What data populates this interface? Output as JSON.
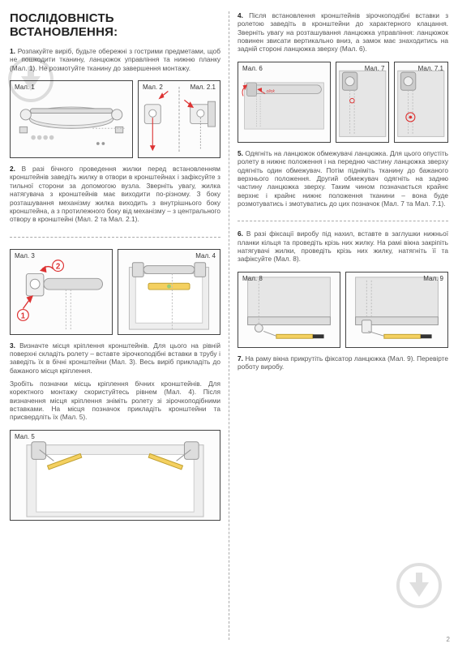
{
  "title": "ПОСЛІДОВНІСТЬ ВСТАНОВЛЕННЯ:",
  "page_number": "2",
  "figlabel_prefix": "Мал.",
  "steps": {
    "s1": "<strong>1.</strong> Розпакуйте виріб, будьте обережні з гострими предметами, щоб не пошкодити тканину, ланцюжок управління та нижню планку (Мал. 1). Не розмотуйте тканину до завершення монтажу.",
    "s2": "<strong>2.</strong> В разі бічного проведення жилки перед встановленням кронштейнів заведіть жилку в отвори в кронштейнах і зафіксуйте з тильної сторони за допомогою вузла. Зверніть увагу, жилка натягувача з кронштейнів має виходити по-різному. З боку розташування механізму жилка виходить з внутрішнього боку кронштейна, а з протилежного боку від механізму – з центрального отвору в кронштейні (Мал. 2 та Мал. 2.1).",
    "s3a": "<strong>3.</strong> Визначте місця кріплення кронштейнів. Для цього на рівній поверхні складіть ролету – вставте зірочкоподібні вставки в трубу і заведіть їх в бічні кронштейни (Мал. 3). Весь виріб прикладіть до бажаного місця кріплення.",
    "s3b": "Зробіть позначки місць кріплення бічних кронштейнів. Для коректного монтажу скористуйтесь рівнем (Мал. 4). Після визначення місця кріплення зніміть ролету зі зірочкоподібними вставками. На місця позначок прикладіть кронштейни та присвердліть їх (Мал. 5).",
    "s4": "<strong>4.</strong> Після встановлення кронштейнів зірочкоподібні вставки з ролетою заведіть в кронштейни до характерного клацання. Зверніть увагу на розташування ланцюжка управління: ланцюжок повинен звисати вертикально вниз, а замок має знаходитись на задній стороні ланцюжка зверху (Мал. 6).",
    "s5": "<strong>5.</strong> Одягніть на ланцюжок обмежувачі ланцюжка. Для цього опустіть ролету в нижнє положення і на передню частину ланцюжка зверху одягніть один обмежувач. Потім підніміть тканину до бажаного верхнього положення. Другий обмежувач одягніть на задню частину ланцюжка зверху. Таким чином позначається крайнє верхнє і крайнє нижнє положення тканини – вона буде розмотуватись і змотуватись до цих позначок (Мал. 7 та Мал. 7.1).",
    "s6": "<strong>6.</strong> В разі фіксації виробу під нахил, вставте в заглушки нижньої планки кільця та проведіть крізь них жилку. На рамі вікна закріпіть натягувачі жилки, проведіть крізь них жилку, натягніть її та зафіксуйте (Мал. 8).",
    "s7": "<strong>7.</strong> На раму вікна прикрутіть фіксатор ланцюжка (Мал. 9). Перевірте роботу виробу."
  },
  "figs": {
    "f1": "Мал. 1",
    "f2": "Мал. 2",
    "f21": "Мал. 2.1",
    "f3": "Мал. 3",
    "f4": "Мал. 4",
    "f5": "Мал. 5",
    "f6": "Мал. 6",
    "f7": "Мал. 7",
    "f71": "Мал. 7.1",
    "f8": "Мал. 8",
    "f9": "Мал. 9"
  },
  "click_label": "click"
}
